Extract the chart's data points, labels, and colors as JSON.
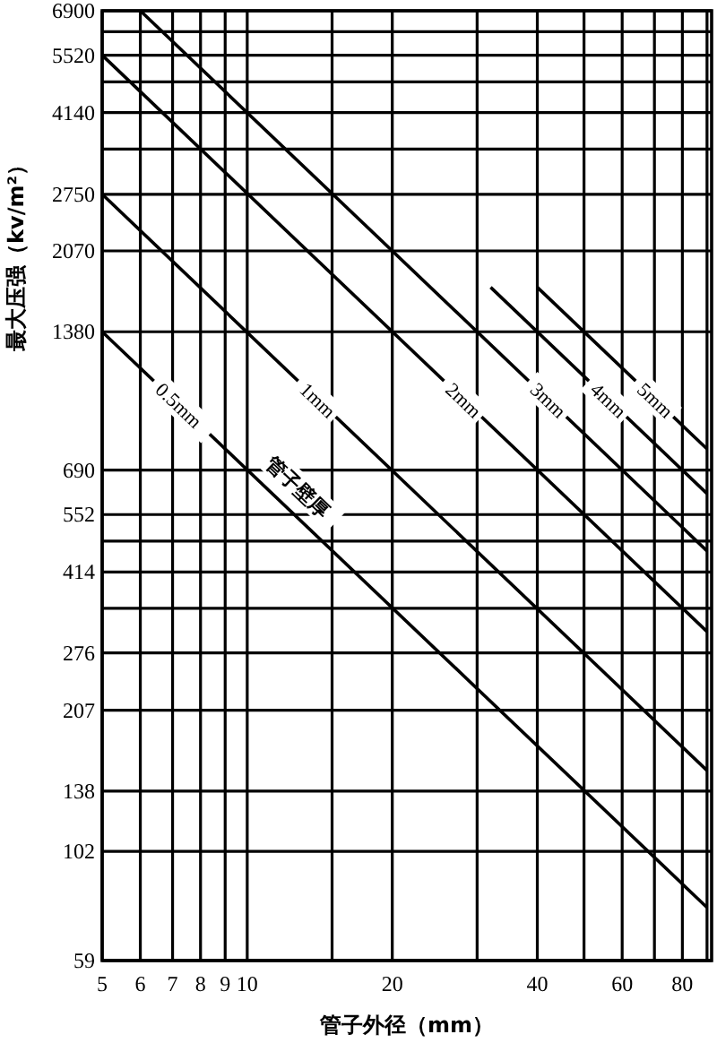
{
  "chart_data": {
    "type": "line",
    "xlabel": "管子外径（mm）",
    "ylabel": "最大压强（kv/m²）",
    "log": "xy",
    "grid": true,
    "marker": "none",
    "line_style": "solid",
    "xlim": [
      5,
      92
    ],
    "ylim": [
      59,
      6900
    ],
    "xticks": [
      5,
      6,
      7,
      8,
      9,
      10,
      {
        "value": 15,
        "label": null
      },
      20,
      {
        "value": 30,
        "label": null
      },
      40,
      {
        "value": 50,
        "label": null
      },
      60,
      {
        "value": 70,
        "label": null
      },
      80,
      {
        "value": 90,
        "label": null
      }
    ],
    "yticks": [
      59,
      102,
      138,
      207,
      276,
      {
        "value": 345,
        "label": null
      },
      414,
      {
        "value": 483,
        "label": null
      },
      552,
      690,
      1380,
      2070,
      2750,
      {
        "value": 3450,
        "label": null
      },
      4140,
      {
        "value": 4830,
        "label": null
      },
      5520,
      {
        "value": 6210,
        "label": null
      },
      6900
    ],
    "series": [
      {
        "name": "0.5mm",
        "color": "#000000",
        "x": [
          5,
          90
        ],
        "values": [
          1380,
          77
        ]
      },
      {
        "name": "1mm",
        "color": "#000000",
        "x": [
          5,
          90
        ],
        "values": [
          2750,
          153
        ]
      },
      {
        "name": "2mm",
        "color": "#000000",
        "x": [
          5,
          90
        ],
        "values": [
          5520,
          307
        ]
      },
      {
        "name": "3mm",
        "color": "#000000",
        "x": [
          6,
          90
        ],
        "values": [
          6900,
          460
        ]
      },
      {
        "name": "4mm",
        "color": "#000000",
        "x": [
          32,
          90
        ],
        "values": [
          1725,
          613
        ]
      },
      {
        "name": "5mm",
        "color": "#000000",
        "x": [
          40,
          90
        ],
        "values": [
          1725,
          767
        ]
      }
    ],
    "annotations": [
      "管子壁厚"
    ]
  }
}
